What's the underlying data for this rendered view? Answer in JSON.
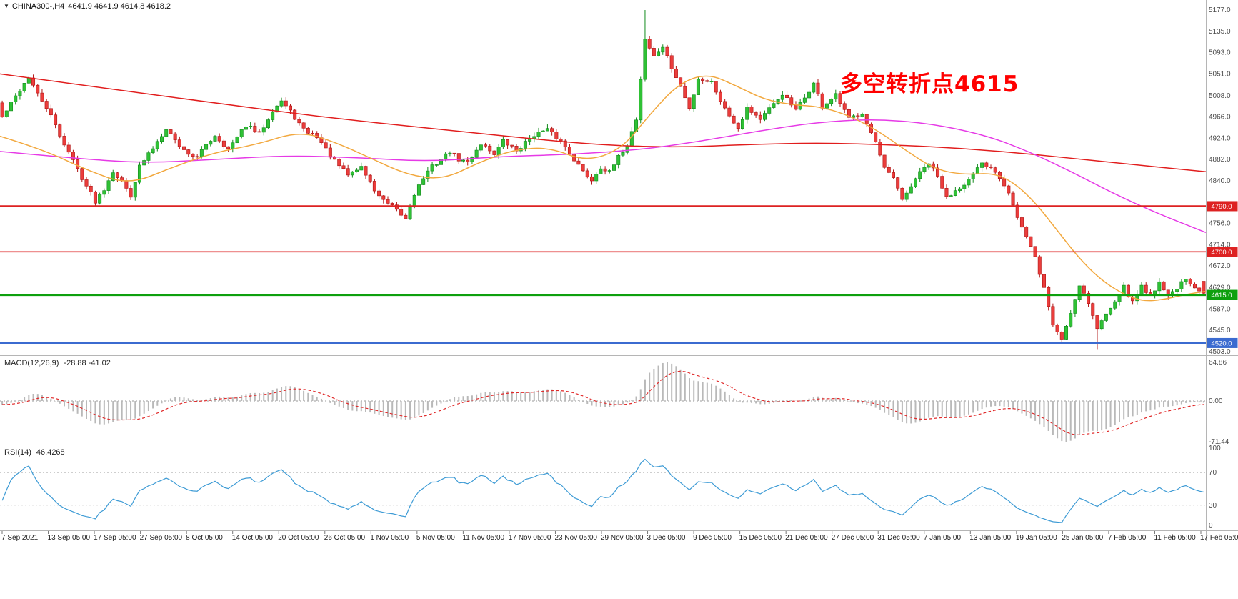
{
  "window": {
    "background": "#ffffff"
  },
  "symbol_bar": {
    "symbol": "CHINA300-,H4",
    "ohlc": "4641.9 4641.9 4614.8 4618.2"
  },
  "annotation": {
    "text": "多空转折点4615",
    "color": "#ff0000"
  },
  "chart_data": {
    "type": "candlestick",
    "symbol": "CHINA300-",
    "timeframe": "H4",
    "title": "CHINA300-,H4",
    "ohlc_current": {
      "open": 4641.9,
      "high": 4641.9,
      "low": 4614.8,
      "close": 4618.2
    },
    "candle_count": 272,
    "x_labels": [
      "7 Sep 2021",
      "13 Sep 05:00",
      "17 Sep 05:00",
      "27 Sep 05:00",
      "8 Oct 05:00",
      "14 Oct 05:00",
      "20 Oct 05:00",
      "26 Oct 05:00",
      "1 Nov 05:00",
      "5 Nov 05:00",
      "11 Nov 05:00",
      "17 Nov 05:00",
      "23 Nov 05:00",
      "29 Nov 05:00",
      "3 Dec 05:00",
      "9 Dec 05:00",
      "15 Dec 05:00",
      "21 Dec 05:00",
      "27 Dec 05:00",
      "31 Dec 05:00",
      "7 Jan 05:00",
      "13 Jan 05:00",
      "19 Jan 05:00",
      "25 Jan 05:00",
      "7 Feb 05:00",
      "11 Feb 05:00",
      "17 Feb 05:00"
    ],
    "y_axis": {
      "labels": [
        5177.0,
        5135.0,
        5093.0,
        5051.0,
        5008.0,
        4966.0,
        4924.0,
        4882.0,
        4840.0,
        4756.0,
        4714.0,
        4672.0,
        4629.0,
        4587.0,
        4545.0,
        4503.0
      ],
      "top": 5177.0,
      "bottom": 4503.0
    },
    "price_path": [
      [
        0,
        4965
      ],
      [
        4,
        5020
      ],
      [
        6,
        5045
      ],
      [
        8,
        5010
      ],
      [
        10,
        4985
      ],
      [
        13,
        4930
      ],
      [
        16,
        4880
      ],
      [
        19,
        4830
      ],
      [
        21,
        4800
      ],
      [
        23,
        4825
      ],
      [
        25,
        4860
      ],
      [
        27,
        4838
      ],
      [
        29,
        4812
      ],
      [
        31,
        4868
      ],
      [
        34,
        4905
      ],
      [
        37,
        4945
      ],
      [
        39,
        4920
      ],
      [
        41,
        4900
      ],
      [
        44,
        4885
      ],
      [
        46,
        4912
      ],
      [
        48,
        4930
      ],
      [
        51,
        4902
      ],
      [
        53,
        4925
      ],
      [
        55,
        4950
      ],
      [
        58,
        4932
      ],
      [
        61,
        4980
      ],
      [
        63,
        4998
      ],
      [
        66,
        4965
      ],
      [
        68,
        4940
      ],
      [
        71,
        4928
      ],
      [
        73,
        4902
      ],
      [
        75,
        4878
      ],
      [
        78,
        4852
      ],
      [
        81,
        4868
      ],
      [
        84,
        4822
      ],
      [
        86,
        4800
      ],
      [
        88,
        4788
      ],
      [
        91,
        4765
      ],
      [
        93,
        4815
      ],
      [
        95,
        4846
      ],
      [
        97,
        4868
      ],
      [
        101,
        4898
      ],
      [
        103,
        4882
      ],
      [
        105,
        4876
      ],
      [
        108,
        4914
      ],
      [
        111,
        4894
      ],
      [
        113,
        4918
      ],
      [
        116,
        4900
      ],
      [
        118,
        4915
      ],
      [
        120,
        4932
      ],
      [
        123,
        4940
      ],
      [
        126,
        4918
      ],
      [
        128,
        4896
      ],
      [
        131,
        4858
      ],
      [
        133,
        4842
      ],
      [
        135,
        4868
      ],
      [
        137,
        4856
      ],
      [
        139,
        4886
      ],
      [
        141,
        4912
      ],
      [
        143,
        4962
      ],
      [
        145,
        5120
      ],
      [
        147,
        5085
      ],
      [
        149,
        5105
      ],
      [
        151,
        5062
      ],
      [
        153,
        5025
      ],
      [
        155,
        4982
      ],
      [
        157,
        5042
      ],
      [
        160,
        5035
      ],
      [
        163,
        4982
      ],
      [
        166,
        4945
      ],
      [
        168,
        4985
      ],
      [
        171,
        4962
      ],
      [
        174,
        4990
      ],
      [
        176,
        5012
      ],
      [
        179,
        4978
      ],
      [
        181,
        5004
      ],
      [
        183,
        5032
      ],
      [
        185,
        4986
      ],
      [
        188,
        5008
      ],
      [
        191,
        4962
      ],
      [
        194,
        4975
      ],
      [
        197,
        4915
      ],
      [
        199,
        4862
      ],
      [
        201,
        4845
      ],
      [
        203,
        4800
      ],
      [
        206,
        4845
      ],
      [
        209,
        4875
      ],
      [
        211,
        4848
      ],
      [
        213,
        4806
      ],
      [
        215,
        4822
      ],
      [
        218,
        4842
      ],
      [
        221,
        4872
      ],
      [
        224,
        4860
      ],
      [
        227,
        4820
      ],
      [
        229,
        4768
      ],
      [
        231,
        4728
      ],
      [
        233,
        4688
      ],
      [
        235,
        4628
      ],
      [
        237,
        4556
      ],
      [
        239,
        4528
      ],
      [
        241,
        4580
      ],
      [
        243,
        4636
      ],
      [
        245,
        4600
      ],
      [
        247,
        4548
      ],
      [
        249,
        4578
      ],
      [
        251,
        4606
      ],
      [
        253,
        4630
      ],
      [
        255,
        4600
      ],
      [
        257,
        4634
      ],
      [
        259,
        4612
      ],
      [
        261,
        4642
      ],
      [
        263,
        4612
      ],
      [
        265,
        4630
      ],
      [
        267,
        4644
      ],
      [
        269,
        4626
      ],
      [
        271,
        4618.2
      ]
    ],
    "extremes": {
      "high": 5177.0,
      "high_index": 145,
      "low": 4519.0,
      "low_index": 239,
      "low2": 4508.0,
      "low2_index": 247
    },
    "moving_averages": [
      {
        "name": "ma-slow-red",
        "color": "#e11d1d",
        "points": [
          [
            0,
            5051
          ],
          [
            150,
            5022
          ],
          [
            300,
            4994
          ],
          [
            450,
            4966
          ],
          [
            600,
            4944
          ],
          [
            750,
            4922
          ],
          [
            850,
            4910
          ],
          [
            950,
            4906
          ],
          [
            1050,
            4912
          ],
          [
            1150,
            4915
          ],
          [
            1250,
            4911
          ],
          [
            1350,
            4904
          ],
          [
            1450,
            4892
          ],
          [
            1550,
            4877
          ],
          [
            1688,
            4858
          ]
        ]
      },
      {
        "name": "ma-mid-magenta",
        "color": "#e63ae6",
        "points": [
          [
            0,
            4898
          ],
          [
            100,
            4885
          ],
          [
            200,
            4875
          ],
          [
            300,
            4882
          ],
          [
            400,
            4890
          ],
          [
            500,
            4886
          ],
          [
            600,
            4878
          ],
          [
            700,
            4888
          ],
          [
            800,
            4892
          ],
          [
            900,
            4902
          ],
          [
            980,
            4918
          ],
          [
            1060,
            4938
          ],
          [
            1140,
            4955
          ],
          [
            1220,
            4962
          ],
          [
            1300,
            4954
          ],
          [
            1380,
            4930
          ],
          [
            1440,
            4898
          ],
          [
            1500,
            4858
          ],
          [
            1560,
            4814
          ],
          [
            1620,
            4776
          ],
          [
            1688,
            4738
          ]
        ]
      },
      {
        "name": "ma-fast-orange",
        "color": "#f2a83e",
        "points": [
          [
            0,
            4928
          ],
          [
            60,
            4902
          ],
          [
            120,
            4862
          ],
          [
            180,
            4832
          ],
          [
            240,
            4866
          ],
          [
            300,
            4896
          ],
          [
            360,
            4912
          ],
          [
            420,
            4938
          ],
          [
            470,
            4916
          ],
          [
            520,
            4884
          ],
          [
            570,
            4852
          ],
          [
            620,
            4842
          ],
          [
            670,
            4876
          ],
          [
            720,
            4902
          ],
          [
            770,
            4906
          ],
          [
            820,
            4878
          ],
          [
            870,
            4902
          ],
          [
            910,
            4972
          ],
          [
            950,
            5032
          ],
          [
            990,
            5052
          ],
          [
            1030,
            5028
          ],
          [
            1070,
            5000
          ],
          [
            1110,
            4990
          ],
          [
            1150,
            4986
          ],
          [
            1190,
            4968
          ],
          [
            1230,
            4938
          ],
          [
            1270,
            4898
          ],
          [
            1310,
            4862
          ],
          [
            1350,
            4852
          ],
          [
            1390,
            4856
          ],
          [
            1420,
            4836
          ],
          [
            1450,
            4796
          ],
          [
            1480,
            4742
          ],
          [
            1510,
            4688
          ],
          [
            1540,
            4646
          ],
          [
            1570,
            4618
          ],
          [
            1600,
            4602
          ],
          [
            1630,
            4606
          ],
          [
            1660,
            4616
          ],
          [
            1688,
            4622
          ]
        ]
      }
    ],
    "hlines": [
      {
        "value": 4790.0,
        "tag": "4790.0",
        "color": "#dd2222",
        "width": 2.4
      },
      {
        "value": 4700.0,
        "tag": "4700.0",
        "color": "#dd2222",
        "width": 1.6
      },
      {
        "value": 4615.0,
        "tag": "4615.0",
        "color": "#0ea00e",
        "width": 3
      },
      {
        "value": 4520.0,
        "tag": "4520.0",
        "color": "#3b6bd0",
        "width": 2
      }
    ],
    "macd": {
      "label": "MACD(12,26,9)",
      "values_text": "-28.88 -41.02",
      "params": [
        12,
        26,
        9
      ],
      "current_macd": -28.88,
      "current_signal": -41.02,
      "y_labels": [
        "64.86",
        "0.00",
        "-71.44"
      ],
      "histogram_color": "#b9b9b9",
      "signal_color": "#e02a2a"
    },
    "rsi": {
      "label": "RSI(14)",
      "value_text": "46.4268",
      "period": 14,
      "current_value": 46.4268,
      "levels": [
        70,
        30
      ],
      "y_labels": [
        "100",
        "70",
        "30",
        "0"
      ],
      "line_color": "#3d9bd5"
    },
    "colors": {
      "candle_up_fill": "#2fc135",
      "candle_up_stroke": "#128a1c",
      "candle_down_fill": "#ea3d3c",
      "candle_down_stroke": "#b01414",
      "axis_text": "#4a4a4a",
      "separator": "#b5b5b5",
      "tag_text": "#ffffff"
    },
    "grid": false,
    "legend": false
  }
}
